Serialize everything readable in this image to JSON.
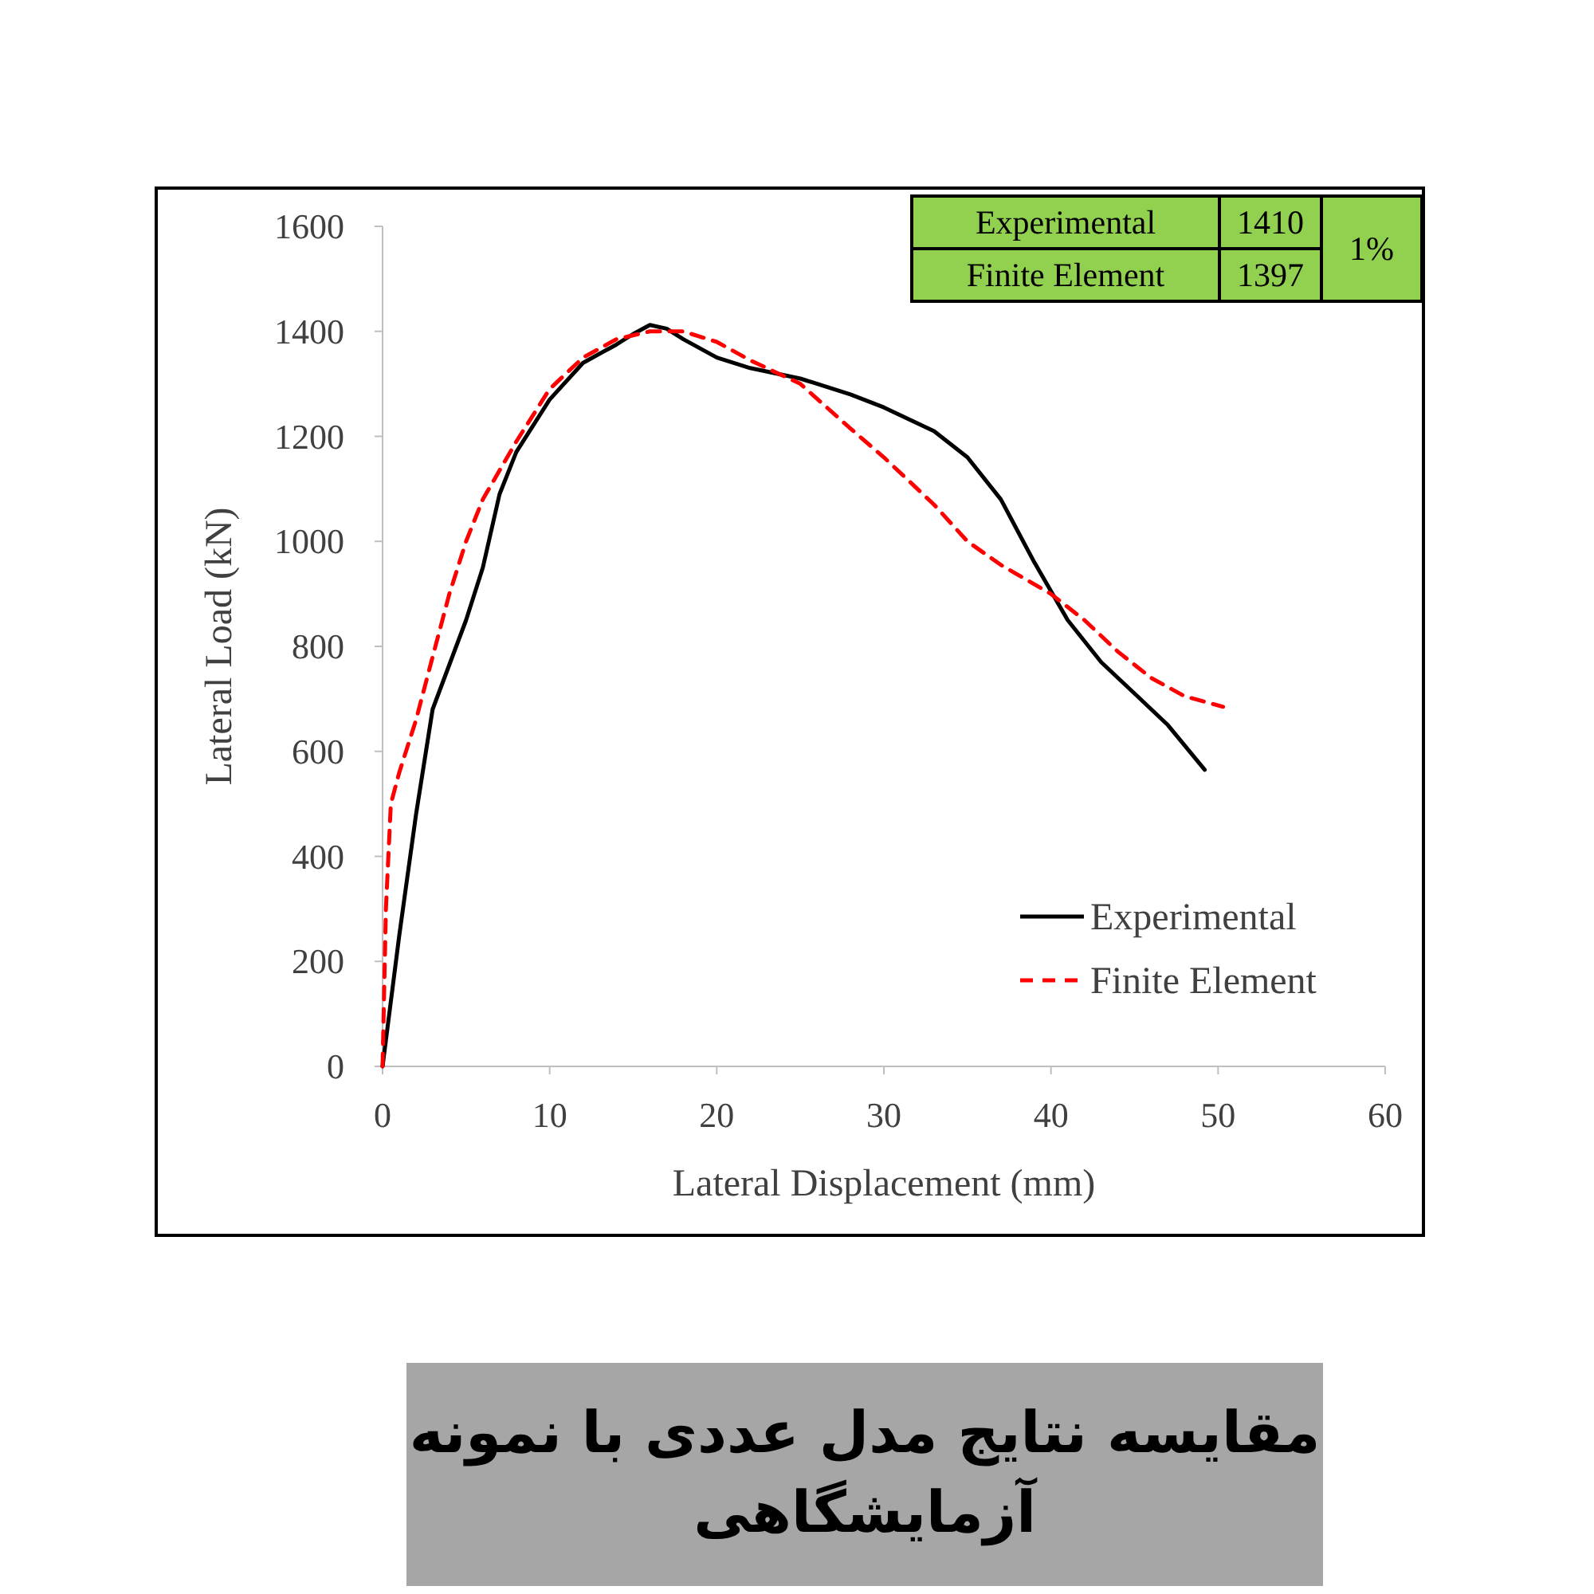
{
  "chart_data": {
    "type": "line",
    "title": "مقایسه نتایج مدل عددی با نمونه آزمایشگاهی",
    "xlabel": "Lateral Displacement (mm)",
    "ylabel": "Lateral Load (kN)",
    "xlim": [
      0,
      60
    ],
    "ylim": [
      0,
      1600
    ],
    "xticks": [
      0,
      10,
      20,
      30,
      40,
      50,
      60
    ],
    "yticks": [
      0,
      200,
      400,
      600,
      800,
      1000,
      1200,
      1400,
      1600
    ],
    "legend": "bottom right",
    "annotations": [
      "Experimental",
      "1410",
      "1%",
      "Finite Element",
      "1397"
    ],
    "series": [
      {
        "name": "Experimental",
        "color": "#000000",
        "line_style": "solid",
        "x": [
          0,
          1,
          2,
          3,
          5,
          6,
          7,
          8,
          10,
          12,
          14,
          15,
          16,
          17,
          18,
          20,
          22,
          25,
          28,
          30,
          33,
          35,
          37,
          39,
          41,
          43,
          45,
          47,
          49.2
        ],
        "values": [
          0,
          250,
          480,
          680,
          850,
          950,
          1090,
          1170,
          1270,
          1340,
          1375,
          1395,
          1412,
          1405,
          1385,
          1350,
          1330,
          1310,
          1280,
          1255,
          1210,
          1160,
          1080,
          960,
          850,
          770,
          710,
          650,
          565
        ]
      },
      {
        "name": "Finite Element",
        "color": "#ff0000",
        "line_style": "dashed",
        "x": [
          0,
          0.2,
          0.5,
          1,
          2,
          3,
          4,
          5,
          6,
          8,
          10,
          12,
          14,
          16,
          18,
          20,
          22,
          25,
          28,
          30,
          33,
          35,
          37,
          40,
          42,
          44,
          46,
          48,
          50.3
        ],
        "values": [
          0,
          300,
          500,
          560,
          660,
          780,
          900,
          1000,
          1080,
          1190,
          1290,
          1350,
          1385,
          1400,
          1400,
          1380,
          1345,
          1300,
          1215,
          1160,
          1070,
          1000,
          955,
          900,
          850,
          790,
          740,
          705,
          685
        ]
      }
    ]
  }
}
